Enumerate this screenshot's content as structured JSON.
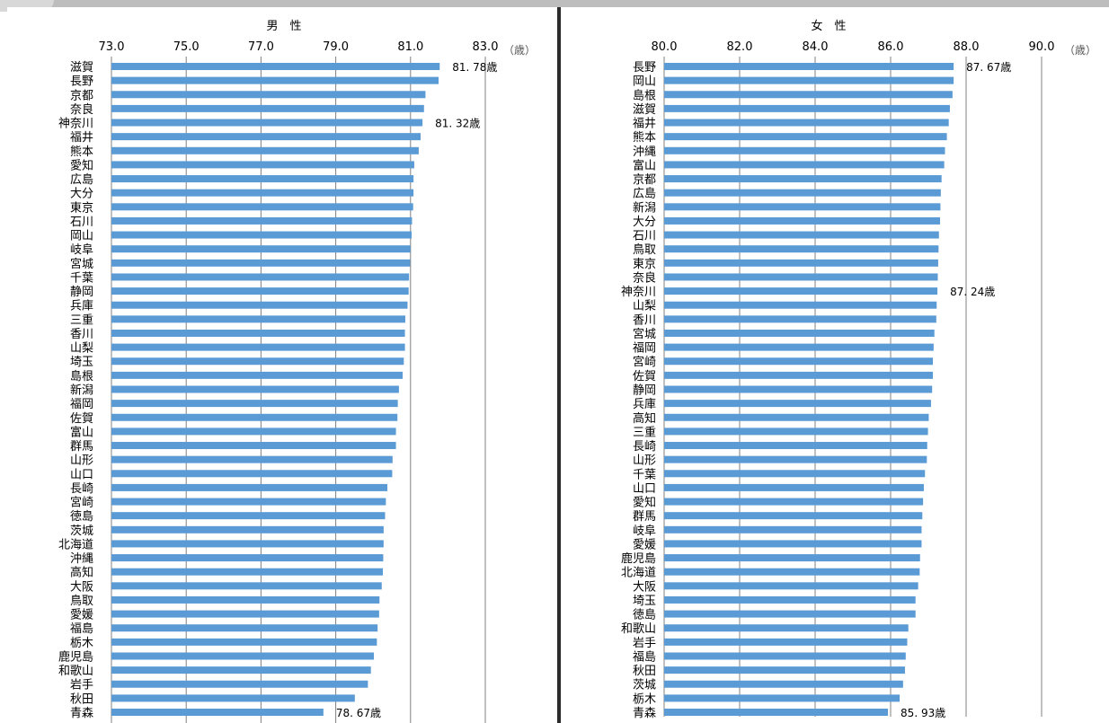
{
  "chart_data": [
    {
      "type": "bar",
      "orientation": "horizontal",
      "title": "男　性",
      "unit": "（歳）",
      "xlim": [
        73.0,
        83.0
      ],
      "ticks": [
        "73.0",
        "75.0",
        "77.0",
        "79.0",
        "81.0",
        "83.0"
      ],
      "tick_values": [
        73,
        75,
        77,
        79,
        81,
        83
      ],
      "grid": "vertical",
      "bar_color": "#5b9bd5",
      "categories": [
        "滋賀",
        "長野",
        "京都",
        "奈良",
        "神奈川",
        "福井",
        "熊本",
        "愛知",
        "広島",
        "大分",
        "東京",
        "石川",
        "岡山",
        "岐阜",
        "宮城",
        "千葉",
        "静岡",
        "兵庫",
        "三重",
        "香川",
        "山梨",
        "埼玉",
        "島根",
        "新潟",
        "福岡",
        "佐賀",
        "富山",
        "群馬",
        "山形",
        "山口",
        "長崎",
        "宮崎",
        "徳島",
        "茨城",
        "北海道",
        "沖縄",
        "高知",
        "大阪",
        "鳥取",
        "愛媛",
        "福島",
        "栃木",
        "鹿児島",
        "和歌山",
        "岩手",
        "秋田",
        "青森"
      ],
      "values": [
        81.78,
        81.75,
        81.4,
        81.36,
        81.32,
        81.27,
        81.22,
        81.1,
        81.08,
        81.08,
        81.07,
        81.04,
        81.03,
        81.0,
        80.99,
        80.96,
        80.95,
        80.92,
        80.86,
        80.85,
        80.85,
        80.82,
        80.79,
        80.69,
        80.66,
        80.65,
        80.61,
        80.61,
        80.52,
        80.51,
        80.38,
        80.34,
        80.32,
        80.28,
        80.28,
        80.27,
        80.26,
        80.23,
        80.17,
        80.16,
        80.12,
        80.1,
        80.02,
        79.94,
        79.86,
        79.51,
        78.67
      ],
      "annotations": [
        {
          "category": "滋賀",
          "text": "81. 78歳"
        },
        {
          "category": "神奈川",
          "text": "81. 32歳"
        },
        {
          "category": "青森",
          "text": "78. 67歳"
        }
      ]
    },
    {
      "type": "bar",
      "orientation": "horizontal",
      "title": "女　性",
      "unit": "（歳）",
      "xlim": [
        80.0,
        90.0
      ],
      "ticks": [
        "80.0",
        "82.0",
        "84.0",
        "86.0",
        "88.0",
        "90.0"
      ],
      "tick_values": [
        80,
        82,
        84,
        86,
        88,
        90
      ],
      "grid": "vertical",
      "bar_color": "#5b9bd5",
      "categories": [
        "長野",
        "岡山",
        "島根",
        "滋賀",
        "福井",
        "熊本",
        "沖縄",
        "富山",
        "京都",
        "広島",
        "新潟",
        "大分",
        "石川",
        "鳥取",
        "東京",
        "奈良",
        "神奈川",
        "山梨",
        "香川",
        "宮城",
        "福岡",
        "宮崎",
        "佐賀",
        "静岡",
        "兵庫",
        "高知",
        "三重",
        "長崎",
        "山形",
        "千葉",
        "山口",
        "愛知",
        "群馬",
        "岐阜",
        "愛媛",
        "鹿児島",
        "北海道",
        "大阪",
        "埼玉",
        "徳島",
        "和歌山",
        "岩手",
        "福島",
        "秋田",
        "茨城",
        "栃木",
        "青森"
      ],
      "values": [
        87.67,
        87.67,
        87.64,
        87.57,
        87.54,
        87.49,
        87.44,
        87.42,
        87.35,
        87.33,
        87.32,
        87.31,
        87.28,
        87.27,
        87.26,
        87.25,
        87.24,
        87.22,
        87.21,
        87.16,
        87.14,
        87.12,
        87.12,
        87.1,
        87.07,
        87.01,
        86.99,
        86.97,
        86.96,
        86.91,
        86.88,
        86.86,
        86.84,
        86.82,
        86.82,
        86.78,
        86.77,
        86.73,
        86.66,
        86.66,
        86.47,
        86.44,
        86.4,
        86.38,
        86.33,
        86.24,
        85.93
      ],
      "annotations": [
        {
          "category": "長野",
          "text": "87. 67歳"
        },
        {
          "category": "神奈川",
          "text": "87. 24歳"
        },
        {
          "category": "青森",
          "text": "85. 93歳"
        }
      ]
    }
  ]
}
